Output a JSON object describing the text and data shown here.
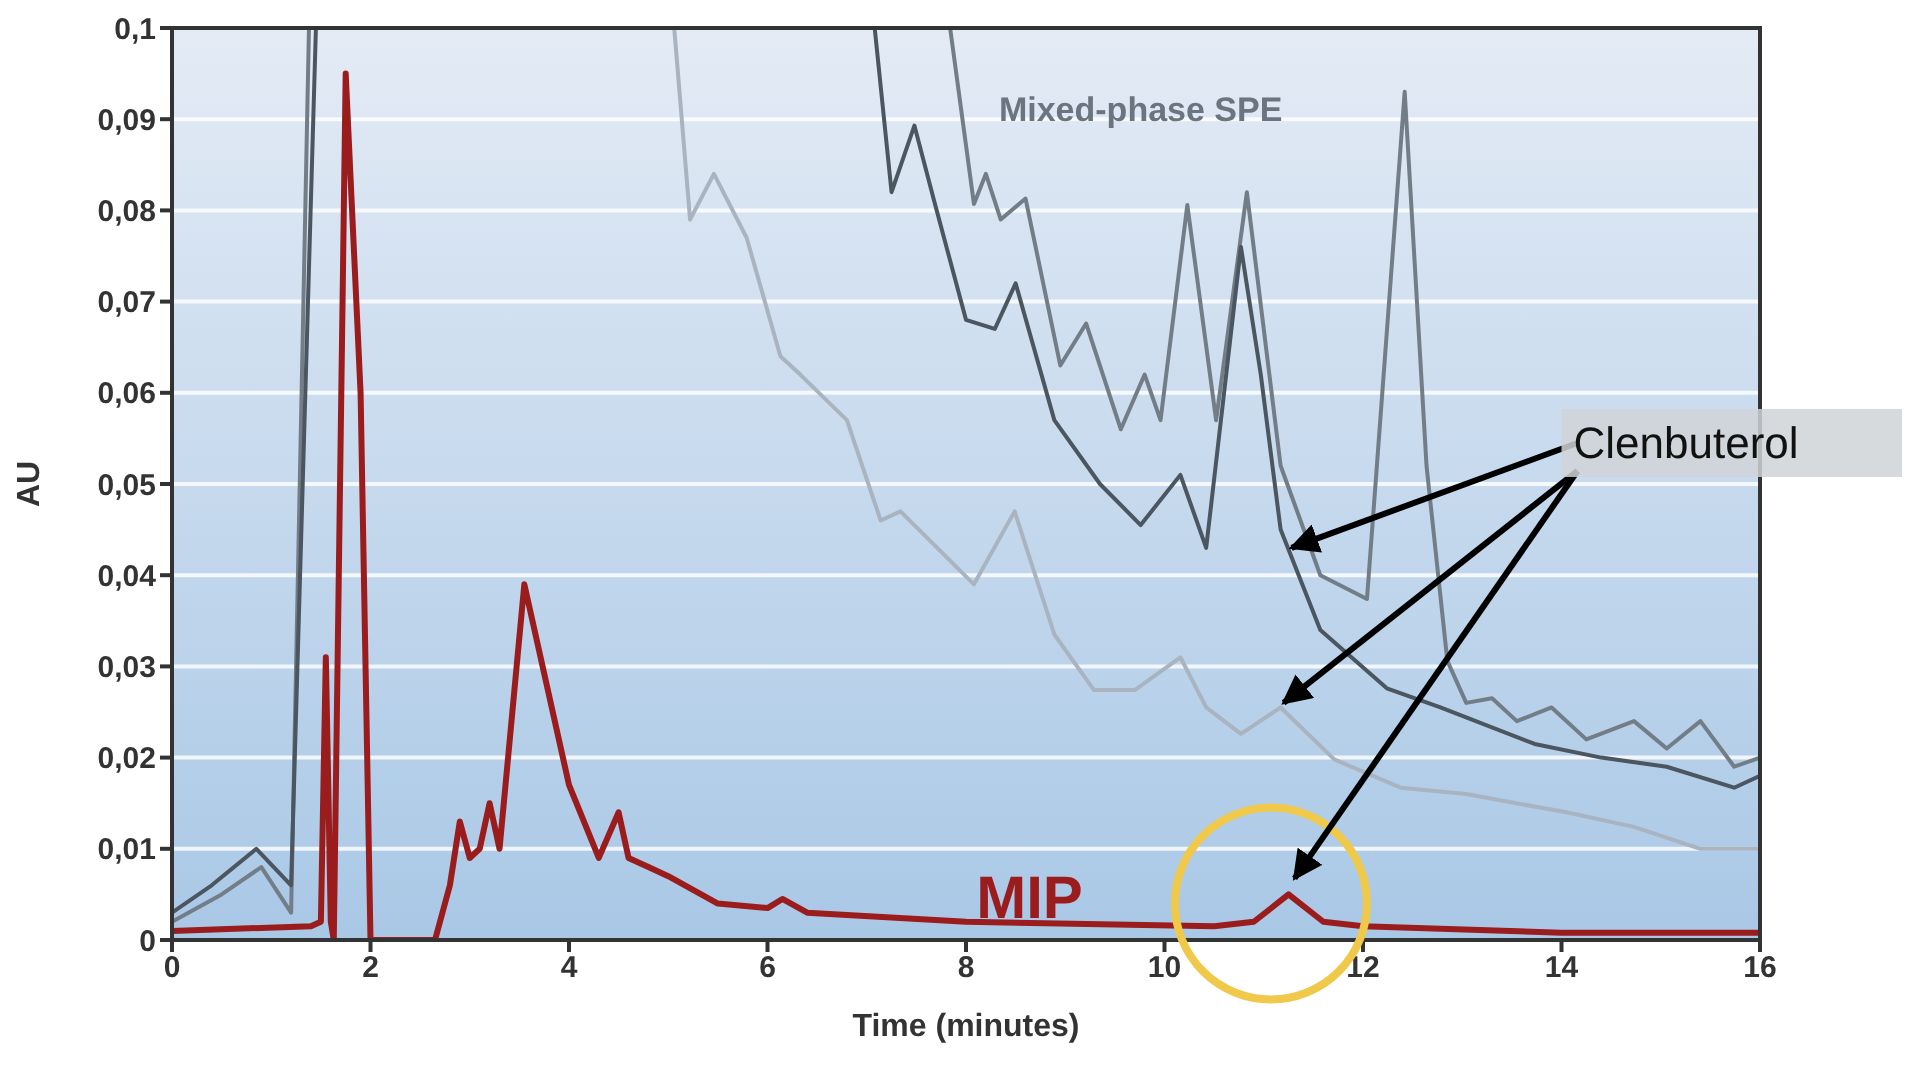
{
  "chart_data": {
    "type": "line",
    "xlabel": "Time (minutes)",
    "ylabel": "AU",
    "xlim": [
      0,
      16
    ],
    "xticks": [
      0,
      2,
      4,
      6,
      8,
      10,
      12,
      14,
      16
    ],
    "ylim": [
      0,
      0.1
    ],
    "yticks": [
      0,
      {
        "value": 0.01,
        "label": "0,01"
      },
      {
        "value": 0.02,
        "label": "0,02"
      },
      {
        "value": 0.03,
        "label": "0,03"
      },
      {
        "value": 0.04,
        "label": "0,04"
      },
      {
        "value": 0.05,
        "label": "0,05"
      },
      {
        "value": 0.06,
        "label": "0,06"
      },
      {
        "value": 0.07,
        "label": "0,07"
      },
      {
        "value": 0.08,
        "label": "0,08"
      },
      {
        "value": 0.09,
        "label": "0,09"
      },
      {
        "value": 0.1,
        "label": "0,1"
      }
    ],
    "grid": "y",
    "annotations": [
      "Mixed-phase SPE",
      {
        "text": "Clenbuterol",
        "x": 11.25,
        "y": 0.005
      }
    ],
    "series": [
      {
        "color": "#a9b4c0",
        "x": [
          5.06,
          5.22,
          5.46,
          5.79,
          6.13,
          6.33,
          6.8,
          7.14,
          7.34,
          8.08,
          8.49,
          8.89,
          9.29,
          9.7,
          10.16,
          10.42,
          10.77,
          11.17,
          11.71,
          12.38,
          13.04,
          14.05,
          14.73,
          15.4,
          16
        ],
        "values": [
          0.1,
          0.079,
          0.084,
          0.077,
          0.064,
          0.062,
          0.057,
          0.046,
          0.047,
          0.039,
          0.047,
          0.0335,
          0.0274,
          0.0274,
          0.031,
          0.0255,
          0.0226,
          0.0255,
          0.0198,
          0.0167,
          0.016,
          0.014,
          0.0124,
          0.01,
          0.01
        ]
      },
      {
        "color": "#727d88",
        "x": [
          0,
          0.5,
          0.9,
          1.2,
          1.38,
          1.39,
          7.84,
          8.08,
          8.2,
          8.35,
          8.6,
          8.95,
          9.21,
          9.56,
          9.8,
          9.96,
          10.23,
          10.52,
          10.83,
          11.17,
          11.57,
          12.04,
          12.42,
          12.64,
          12.85,
          13.04,
          13.3,
          13.55,
          13.9,
          14.25,
          14.73,
          15.06,
          15.4,
          15.74,
          16
        ],
        "values": [
          0.002,
          0.005,
          0.008,
          0.003,
          0.1,
          null,
          0.1,
          0.0807,
          0.084,
          0.079,
          0.0813,
          0.063,
          0.0676,
          0.056,
          0.062,
          0.057,
          0.0806,
          0.057,
          0.082,
          0.052,
          0.04,
          0.0374,
          0.093,
          0.052,
          0.0306,
          0.026,
          0.0265,
          0.024,
          0.0255,
          0.022,
          0.024,
          0.021,
          0.024,
          0.019,
          0.02
        ]
      },
      {
        "color": "#4b5661",
        "x": [
          0,
          0.4,
          0.85,
          1.2,
          1.45,
          1.46,
          7.08,
          7.25,
          7.48,
          7.68,
          8.0,
          8.29,
          8.5,
          8.89,
          9.35,
          9.76,
          10.16,
          10.42,
          10.77,
          10.97,
          11.17,
          11.57,
          12.24,
          12.78,
          13.73,
          14.4,
          15.06,
          15.74,
          16
        ],
        "values": [
          0.003,
          0.006,
          0.01,
          0.006,
          0.1,
          null,
          0.1,
          0.082,
          0.0893,
          0.081,
          0.068,
          0.067,
          0.072,
          0.057,
          0.05,
          0.0455,
          0.051,
          0.043,
          0.076,
          0.062,
          0.045,
          0.034,
          0.0276,
          0.0255,
          0.0215,
          0.02,
          0.019,
          0.0167,
          0.018
        ]
      },
      {
        "name": "MIP",
        "color": "#9b1c1c",
        "x": [
          0,
          1.4,
          1.5,
          1.55,
          1.6,
          1.63,
          1.75,
          1.9,
          2.0,
          2.02,
          2.65,
          2.8,
          2.9,
          3.0,
          3.1,
          3.2,
          3.3,
          3.55,
          4.0,
          4.3,
          4.5,
          4.6,
          4.8,
          5.0,
          5.5,
          6.0,
          6.15,
          6.4,
          8,
          10.5,
          10.9,
          11.25,
          11.6,
          12,
          14,
          16
        ],
        "values": [
          0.001,
          0.0015,
          0.002,
          0.031,
          0.002,
          0.0,
          0.095,
          0.06,
          0.0,
          0.0,
          0.0,
          0.006,
          0.013,
          0.009,
          0.01,
          0.015,
          0.01,
          0.039,
          0.017,
          0.009,
          0.014,
          0.009,
          0.008,
          0.007,
          0.004,
          0.0035,
          0.0045,
          0.003,
          0.002,
          0.0015,
          0.002,
          0.005,
          0.002,
          0.0015,
          0.0008,
          0.0008
        ]
      }
    ]
  }
}
